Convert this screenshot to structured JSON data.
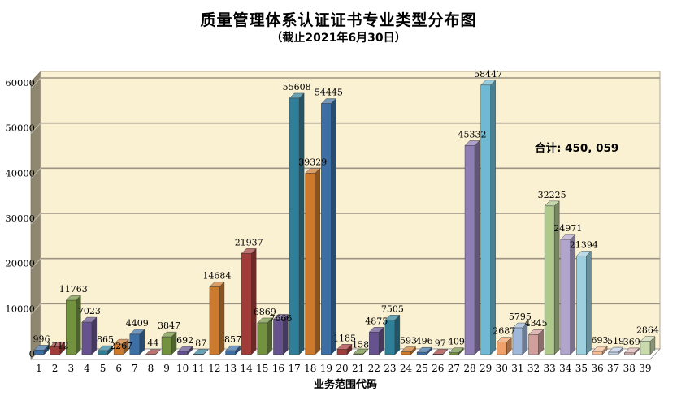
{
  "title": "质量管理体系认证证书专业类型分布图",
  "subtitle": "（截止2021年6月30日）",
  "annotation": {
    "total_label": "合计: 450, 059"
  },
  "chart_data": {
    "type": "bar",
    "style": "3d-column",
    "title": "质量管理体系认证证书专业类型分布图",
    "subtitle": "（截止2021年6月30日）",
    "xlabel": "业务范围代码",
    "ylabel": "",
    "ylim": [
      0,
      60000
    ],
    "ytick_interval": 10000,
    "yticks": [
      "0",
      "10000",
      "20000",
      "30000",
      "40000",
      "50000",
      "60000"
    ],
    "grid": true,
    "legend": "none",
    "total": 450059,
    "categories": [
      "1",
      "2",
      "3",
      "4",
      "5",
      "6",
      "7",
      "8",
      "9",
      "10",
      "11",
      "12",
      "13",
      "14",
      "15",
      "16",
      "17",
      "18",
      "19",
      "20",
      "21",
      "22",
      "23",
      "24",
      "25",
      "26",
      "27",
      "28",
      "29",
      "30",
      "31",
      "32",
      "33",
      "34",
      "35",
      "36",
      "37",
      "38",
      "39"
    ],
    "values": [
      996,
      1712,
      11763,
      7023,
      865,
      2267,
      4409,
      44,
      3847,
      692,
      87,
      14684,
      857,
      21937,
      6869,
      7666,
      55608,
      39329,
      54445,
      1185,
      158,
      4875,
      7505,
      593,
      496,
      97,
      409,
      45332,
      58447,
      2687,
      5795,
      4345,
      32225,
      24971,
      21394,
      693,
      519,
      369,
      2864
    ],
    "bar_colors": [
      "#3E6FA4",
      "#A03C3A",
      "#73923F",
      "#65528E",
      "#2F7F99",
      "#CC7A2E",
      "#3E6FA4",
      "#A03C3A",
      "#73923F",
      "#65528E",
      "#2F7F99",
      "#CC7A2E",
      "#3E6FA4",
      "#A03C3A",
      "#73923F",
      "#65528E",
      "#2F7F99",
      "#CC7A2E",
      "#3E6FA4",
      "#A03C3A",
      "#73923F",
      "#65528E",
      "#2F7F99",
      "#CC7A2E",
      "#3E6FA4",
      "#A03C3A",
      "#73923F",
      "#8F7EB3",
      "#6FB9D2",
      "#F0A169",
      "#9FB7D9",
      "#D19E9B",
      "#AFC88C",
      "#B2A5CC",
      "#9ECFDF",
      "#F3BD97",
      "#C0CEE4",
      "#D9B4B2",
      "#C9DAAE"
    ],
    "wall_color": "#FAF0D2",
    "wall_side_color": "#8F8770",
    "floor_color": "#FFFFFF",
    "gridline_color": "#9D9385",
    "text_color": "#000000"
  }
}
